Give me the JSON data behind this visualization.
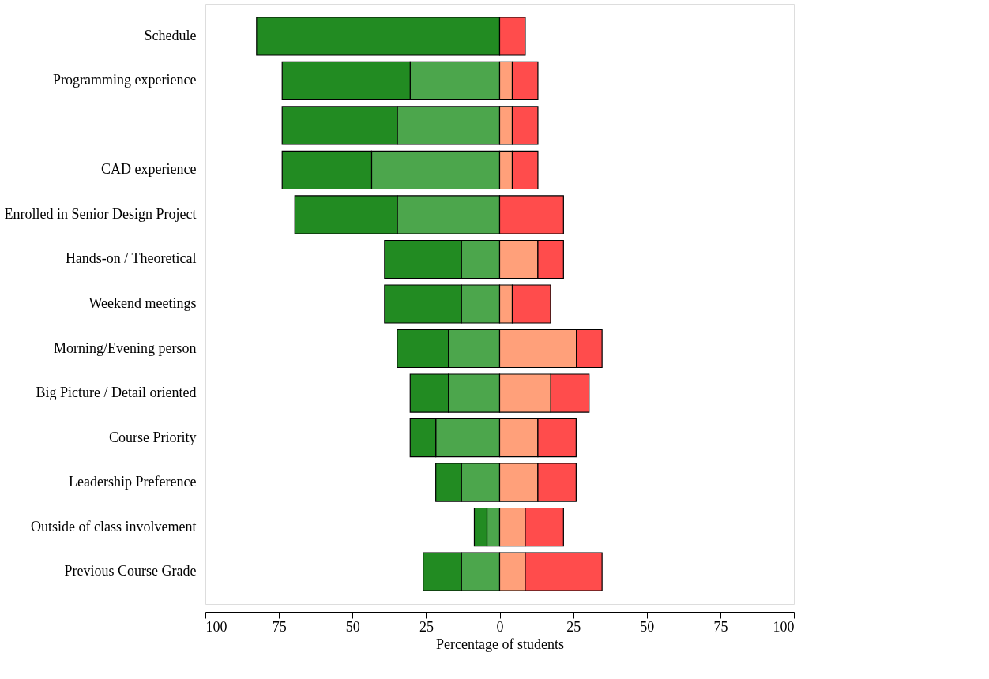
{
  "chart_data": {
    "type": "bar",
    "orientation": "horizontal",
    "stacked": true,
    "xlabel": "Percentage of students",
    "categories": [
      "Schedule",
      "Programming experience",
      null,
      "CAD experience",
      "Enrolled in Senior Design Project",
      "Hands-on / Theoretical",
      "Weekend meetings",
      "Morning/Evening person",
      "Big Picture / Detail oriented",
      "Course Priority",
      "Leadership Preference",
      "Outside of class involvement",
      "Previous Course Grade"
    ],
    "series": [
      {
        "color": "#4ca64c",
        "values": [
          null,
          -30.4,
          -34.8,
          -43.5,
          -34.8,
          -13.0,
          -13.0,
          -17.4,
          -17.4,
          -21.7,
          -13.0,
          -4.3,
          -13.0
        ]
      },
      {
        "color": "#228b22",
        "values": [
          -82.6,
          -43.5,
          -39.1,
          -30.4,
          -34.8,
          -26.1,
          -26.1,
          -17.4,
          -13.0,
          -8.7,
          -8.7,
          -4.3,
          -13.0
        ]
      },
      {
        "color": "#ffa07a",
        "values": [
          null,
          4.3,
          4.3,
          4.3,
          null,
          13.0,
          4.3,
          26.1,
          17.4,
          13.0,
          13.0,
          8.7,
          8.7
        ]
      },
      {
        "color": "#ff4c4c",
        "values": [
          8.7,
          8.7,
          8.7,
          8.7,
          21.7,
          8.7,
          13.0,
          8.7,
          13.0,
          13.0,
          13.0,
          13.0,
          26.1
        ]
      }
    ],
    "xlim": [
      -100,
      100
    ],
    "xticks": [
      {
        "value": -100,
        "label": "100"
      },
      {
        "value": -75,
        "label": "75"
      },
      {
        "value": -50,
        "label": "50"
      },
      {
        "value": -25,
        "label": "25"
      },
      0,
      25,
      50,
      75,
      100
    ],
    "grid": false,
    "legend": false
  }
}
